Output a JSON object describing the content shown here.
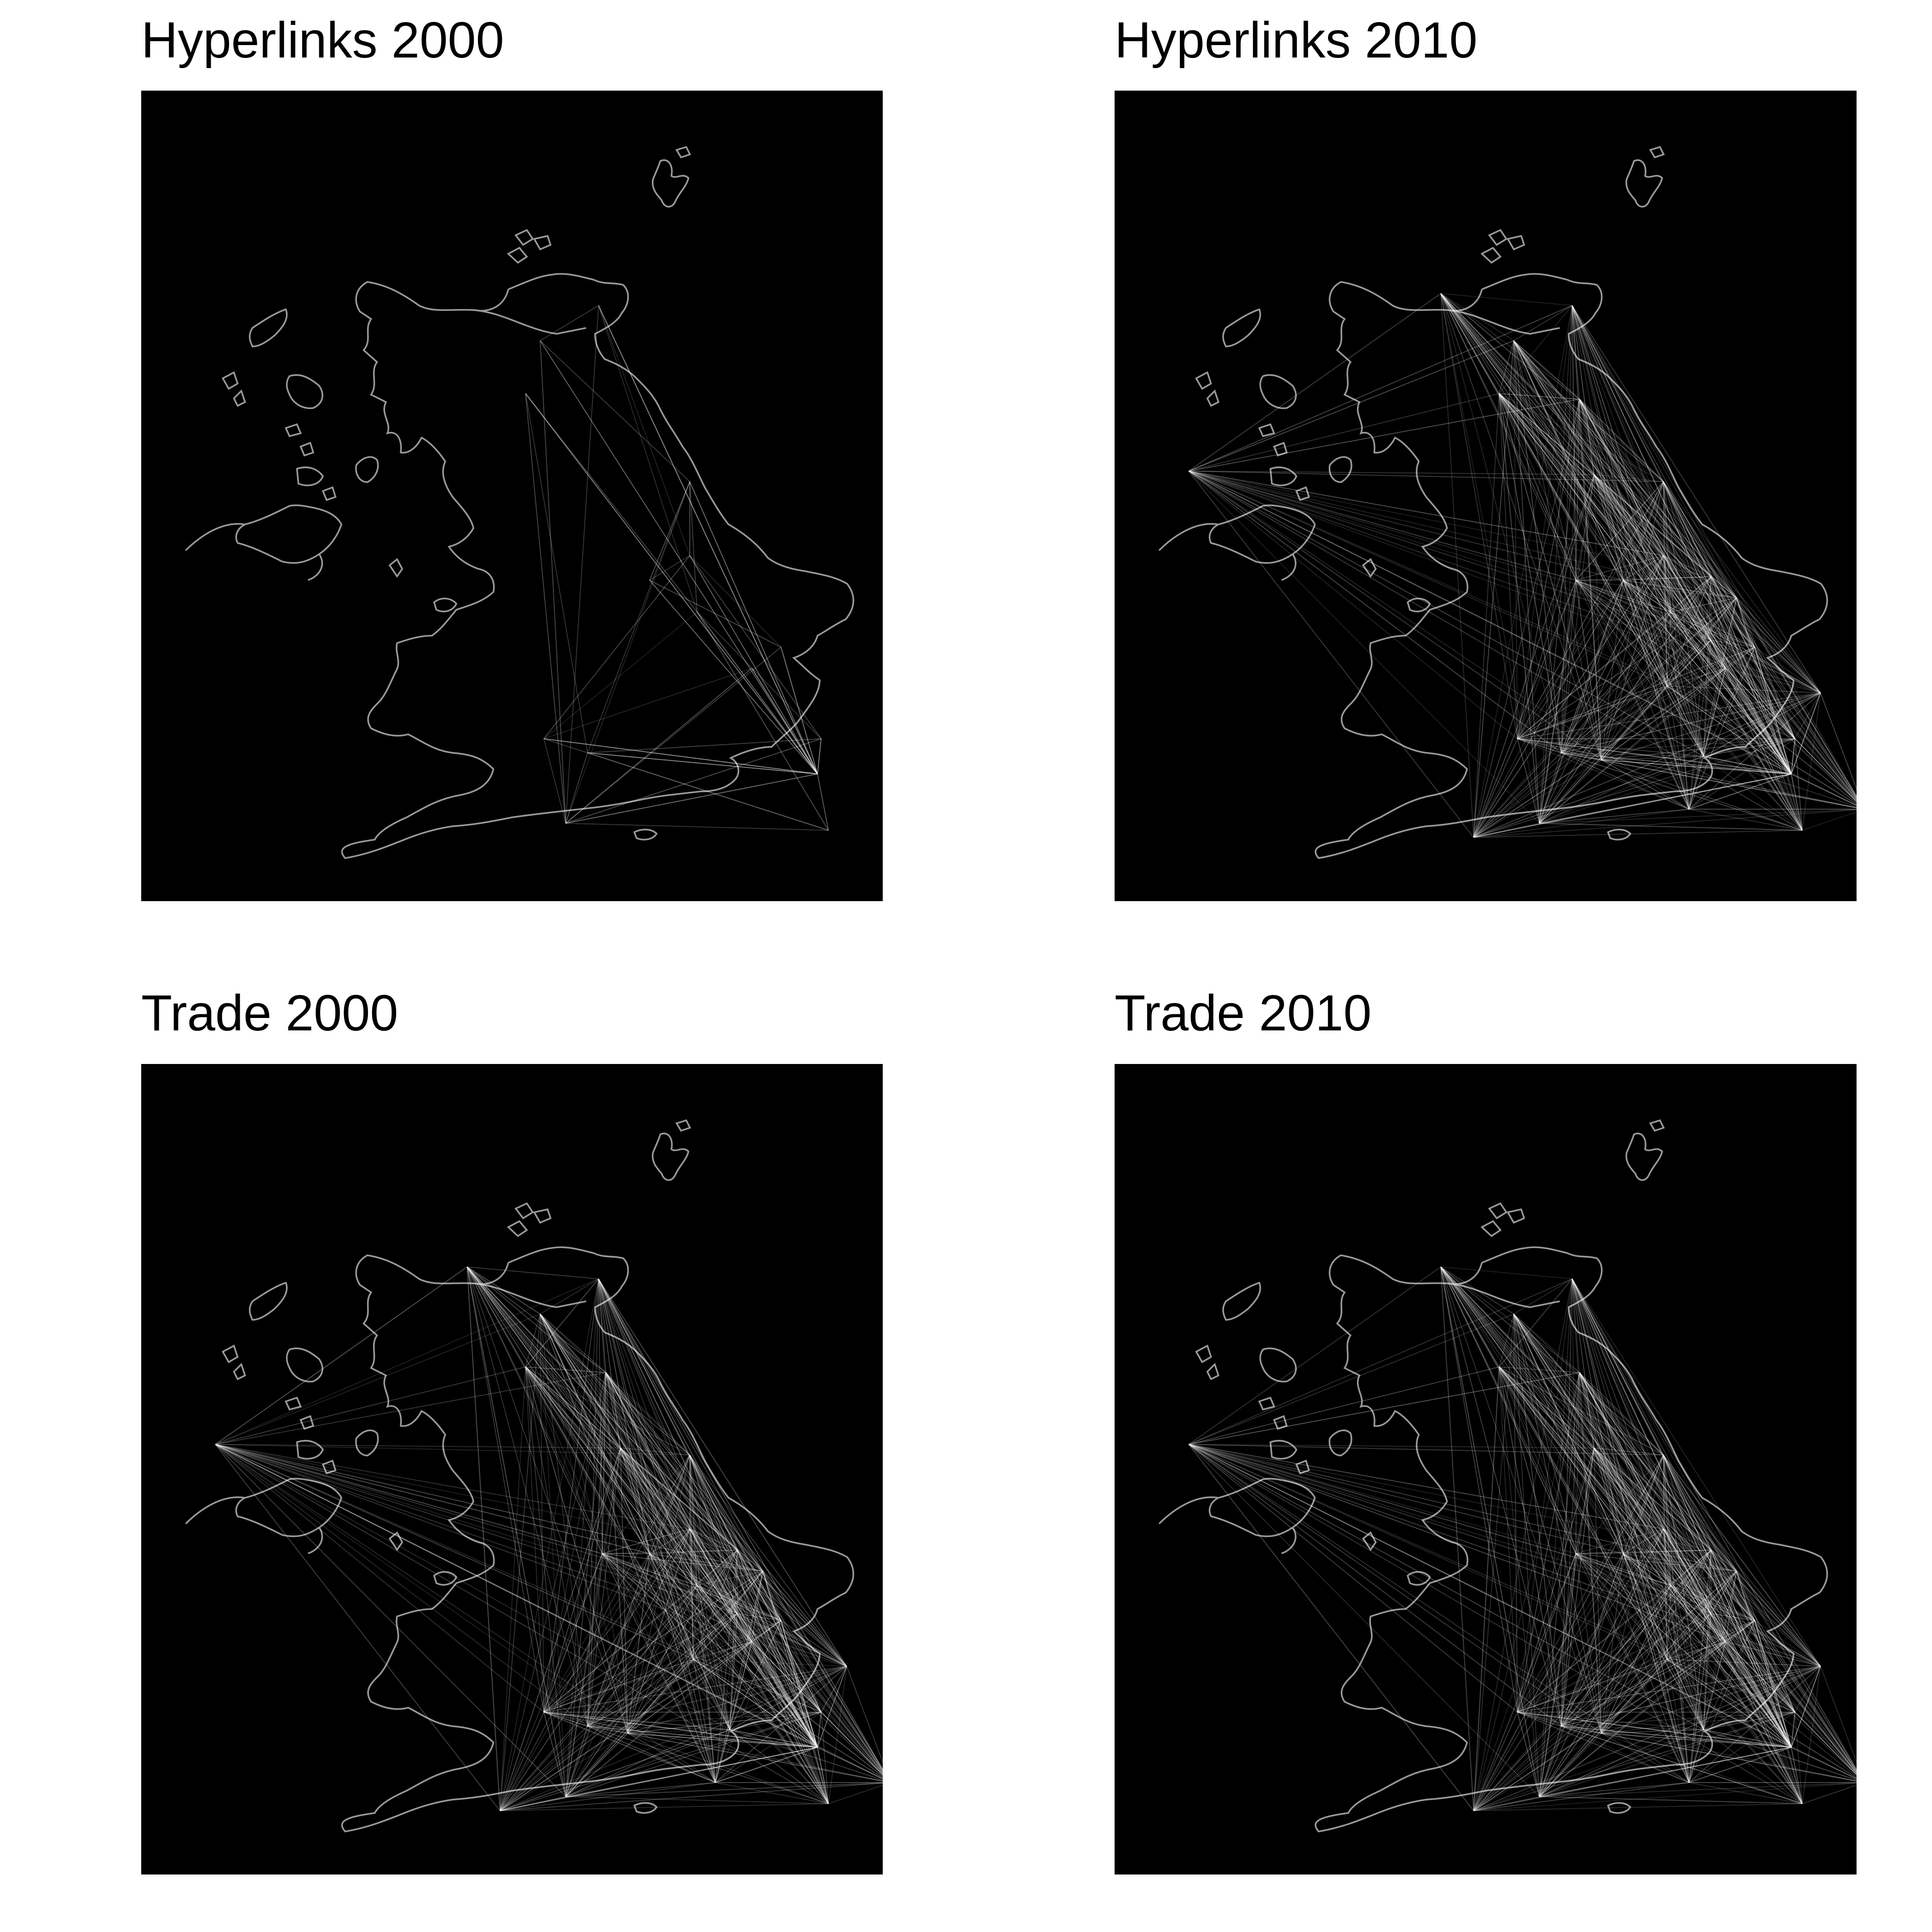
{
  "colors": {
    "background": "#ffffff",
    "map_background": "#000000",
    "coastline": "#9a9a9a",
    "network_lines": "#ffffff"
  },
  "panels": [
    {
      "title": "Hyperlinks 2000"
    },
    {
      "title": "Hyperlinks 2010"
    },
    {
      "title": "Trade 2000"
    },
    {
      "title": "Trade 2010"
    }
  ]
}
